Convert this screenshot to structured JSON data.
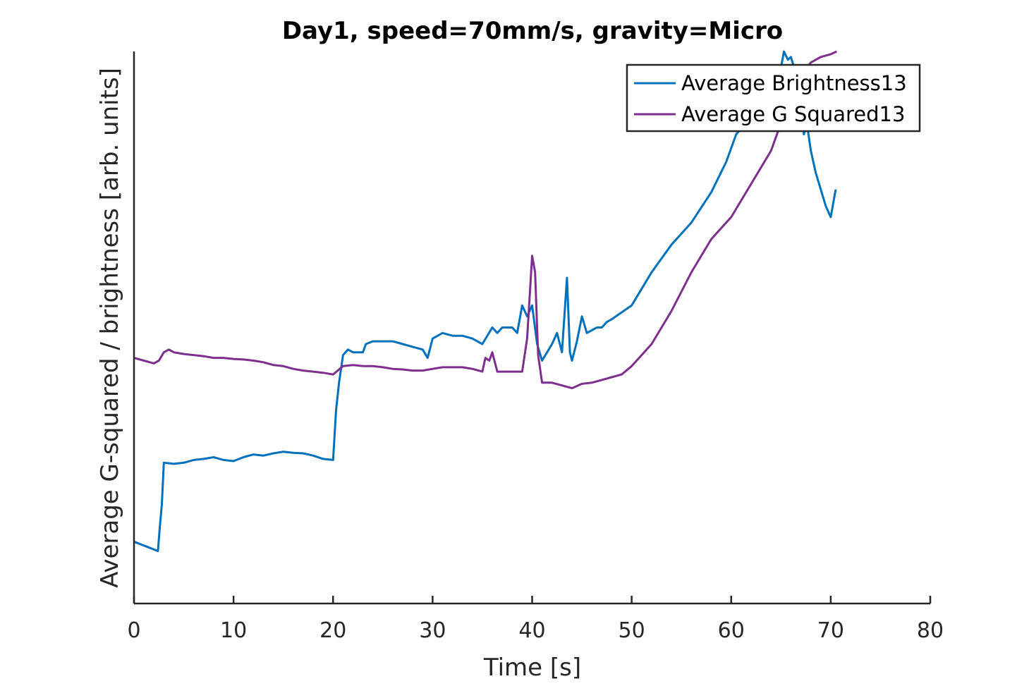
{
  "chart_data": {
    "type": "line",
    "title": "Day1, speed=70mm/s, gravity=Micro",
    "xlabel": "Time [s]",
    "ylabel": "Average G-squared / brightness [arb. units]",
    "xlim": [
      0,
      80
    ],
    "ylim": [
      0,
      1
    ],
    "xticks": [
      0,
      10,
      20,
      30,
      40,
      50,
      60,
      70,
      80
    ],
    "xtick_labels": [
      "0",
      "10",
      "20",
      "30",
      "40",
      "50",
      "60",
      "70",
      "80"
    ],
    "yticks_labeled": false,
    "legend": "top-right",
    "grid": false,
    "series": [
      {
        "name": "Average Brightness13",
        "color": "#0072BD",
        "x": [
          0.0,
          1.0,
          2.0,
          2.4,
          2.6,
          2.8,
          3.0,
          4.0,
          5.0,
          6.0,
          7.0,
          8.0,
          9.0,
          10.0,
          11.0,
          12.0,
          13.0,
          14.0,
          15.0,
          16.0,
          17.0,
          18.0,
          19.0,
          20.0,
          20.3,
          20.6,
          21.0,
          21.5,
          22.0,
          23.0,
          23.3,
          24.0,
          25.0,
          26.0,
          27.0,
          28.0,
          29.0,
          29.5,
          30.0,
          31.0,
          32.0,
          33.0,
          34.0,
          35.0,
          36.0,
          36.5,
          37.0,
          38.0,
          38.5,
          39.0,
          39.5,
          40.0,
          40.5,
          41.0,
          41.5,
          42.0,
          42.5,
          43.0,
          43.5,
          43.8,
          44.0,
          44.5,
          45.0,
          45.5,
          46.0,
          46.5,
          47.0,
          47.5,
          48.0,
          50.0,
          52.0,
          54.0,
          56.0,
          58.0,
          59.5,
          60.5,
          62.0,
          63.5,
          65.0,
          65.3,
          65.7,
          66.0,
          66.5,
          67.0,
          67.3,
          67.6,
          68.0,
          68.5,
          69.0,
          69.5,
          70.0,
          70.5
        ],
        "y": [
          0.112,
          0.105,
          0.098,
          0.095,
          0.14,
          0.18,
          0.255,
          0.253,
          0.255,
          0.26,
          0.262,
          0.265,
          0.26,
          0.258,
          0.265,
          0.27,
          0.268,
          0.272,
          0.275,
          0.273,
          0.272,
          0.268,
          0.262,
          0.26,
          0.35,
          0.4,
          0.45,
          0.46,
          0.455,
          0.455,
          0.47,
          0.475,
          0.475,
          0.475,
          0.47,
          0.465,
          0.46,
          0.445,
          0.48,
          0.49,
          0.485,
          0.485,
          0.48,
          0.47,
          0.5,
          0.49,
          0.5,
          0.5,
          0.49,
          0.54,
          0.52,
          0.54,
          0.47,
          0.44,
          0.455,
          0.47,
          0.49,
          0.455,
          0.59,
          0.455,
          0.44,
          0.475,
          0.52,
          0.49,
          0.495,
          0.5,
          0.5,
          0.51,
          0.515,
          0.54,
          0.6,
          0.65,
          0.69,
          0.745,
          0.8,
          0.85,
          0.88,
          0.92,
          0.97,
          1.0,
          0.985,
          0.99,
          0.96,
          0.92,
          0.85,
          0.87,
          0.82,
          0.78,
          0.75,
          0.72,
          0.7,
          0.75
        ]
      },
      {
        "name": "Average G Squared13",
        "color": "#7E2F8E",
        "x": [
          0.0,
          1.0,
          2.0,
          2.5,
          3.0,
          3.5,
          4.0,
          5.0,
          6.0,
          7.0,
          8.0,
          9.0,
          10.0,
          11.0,
          12.0,
          13.0,
          14.0,
          15.0,
          16.0,
          17.0,
          18.0,
          19.0,
          20.0,
          21.0,
          22.0,
          23.0,
          24.0,
          25.0,
          26.0,
          27.0,
          28.0,
          29.0,
          30.0,
          31.0,
          32.0,
          33.0,
          34.0,
          35.0,
          35.3,
          35.7,
          36.0,
          36.5,
          37.0,
          38.0,
          39.0,
          39.5,
          40.0,
          40.3,
          40.6,
          41.0,
          42.0,
          43.0,
          44.0,
          45.0,
          46.0,
          47.0,
          48.0,
          49.0,
          50.0,
          52.0,
          54.0,
          56.0,
          58.0,
          60.0,
          62.0,
          64.0,
          65.0,
          66.0,
          67.0,
          68.0,
          69.0,
          70.0,
          70.6
        ],
        "y": [
          0.445,
          0.44,
          0.435,
          0.44,
          0.455,
          0.46,
          0.455,
          0.452,
          0.45,
          0.448,
          0.445,
          0.445,
          0.443,
          0.442,
          0.44,
          0.437,
          0.432,
          0.43,
          0.425,
          0.422,
          0.42,
          0.418,
          0.415,
          0.43,
          0.432,
          0.43,
          0.43,
          0.428,
          0.425,
          0.424,
          0.422,
          0.422,
          0.425,
          0.428,
          0.428,
          0.428,
          0.425,
          0.42,
          0.445,
          0.44,
          0.455,
          0.42,
          0.42,
          0.42,
          0.42,
          0.48,
          0.63,
          0.6,
          0.45,
          0.4,
          0.4,
          0.395,
          0.39,
          0.398,
          0.4,
          0.405,
          0.41,
          0.415,
          0.43,
          0.47,
          0.53,
          0.6,
          0.66,
          0.7,
          0.76,
          0.82,
          0.87,
          0.92,
          0.96,
          0.98,
          0.99,
          0.995,
          1.0
        ]
      }
    ]
  }
}
